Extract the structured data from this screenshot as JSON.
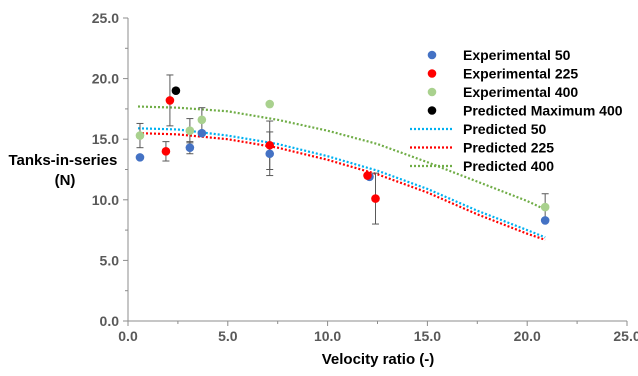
{
  "chart_data": {
    "type": "scatter",
    "xlabel": "Velocity ratio (-)",
    "ylabel": "Tanks-in-series (N)",
    "xlim": [
      0,
      25
    ],
    "ylim": [
      0,
      25
    ],
    "x_ticks": [
      "0.0",
      "5.0",
      "10.0",
      "15.0",
      "20.0",
      "25.0"
    ],
    "y_ticks": [
      "0.0",
      "5.0",
      "10.0",
      "15.0",
      "20.0",
      "25.0"
    ],
    "grid": false,
    "legend_position": "right",
    "series": [
      {
        "name": "Experimental 50",
        "kind": "points",
        "color": "#4472C4",
        "points": [
          {
            "x": 0.6,
            "y": 13.5,
            "err": 0
          },
          {
            "x": 3.1,
            "y": 14.3,
            "err": 0.5
          },
          {
            "x": 3.7,
            "y": 15.5,
            "err": 0
          },
          {
            "x": 7.1,
            "y": 13.8,
            "err": 1.8
          },
          {
            "x": 12.1,
            "y": 11.9,
            "err": 0
          },
          {
            "x": 20.9,
            "y": 8.3,
            "err": 0
          }
        ]
      },
      {
        "name": "Experimental 225",
        "kind": "points",
        "color": "#FF0000",
        "points": [
          {
            "x": 1.9,
            "y": 14.0,
            "err": 0.8
          },
          {
            "x": 2.1,
            "y": 18.2,
            "err": 2.1
          },
          {
            "x": 7.1,
            "y": 14.5,
            "err": 2.0
          },
          {
            "x": 12.0,
            "y": 12.0,
            "err": 0
          },
          {
            "x": 12.4,
            "y": 10.1,
            "err": 2.1
          }
        ]
      },
      {
        "name": "Experimental 400",
        "kind": "points",
        "color": "#A9D18E",
        "points": [
          {
            "x": 0.6,
            "y": 15.3,
            "err": 1.0
          },
          {
            "x": 3.1,
            "y": 15.7,
            "err": 1.0
          },
          {
            "x": 3.7,
            "y": 16.6,
            "err": 1.0
          },
          {
            "x": 7.1,
            "y": 17.9,
            "err": 0
          },
          {
            "x": 20.9,
            "y": 9.4,
            "err": 1.1
          }
        ]
      },
      {
        "name": "Predicted Maximum 400",
        "kind": "points",
        "color": "#000000",
        "points": [
          {
            "x": 2.4,
            "y": 19.0,
            "err": 0
          }
        ]
      },
      {
        "name": "Predicted 50",
        "kind": "line",
        "color": "#00B0F0",
        "x": [
          0.5,
          2.5,
          5,
          7.5,
          10,
          12.5,
          15,
          17.5,
          20,
          20.9
        ],
        "y": [
          15.9,
          15.8,
          15.3,
          14.6,
          13.6,
          12.4,
          10.9,
          9.1,
          7.5,
          6.9
        ]
      },
      {
        "name": "Predicted 225",
        "kind": "line",
        "color": "#FF0000",
        "x": [
          0.5,
          2.5,
          5,
          7.5,
          10,
          12.5,
          15,
          17.5,
          20,
          20.9
        ],
        "y": [
          15.5,
          15.4,
          15.0,
          14.3,
          13.3,
          12.1,
          10.6,
          8.8,
          7.2,
          6.7
        ]
      },
      {
        "name": "Predicted 400",
        "kind": "line",
        "color": "#70AD47",
        "x": [
          0.5,
          2.5,
          5,
          7.5,
          10,
          12.5,
          15,
          17.5,
          20,
          20.9
        ],
        "y": [
          17.7,
          17.6,
          17.3,
          16.6,
          15.7,
          14.6,
          13.1,
          11.5,
          9.9,
          9.2
        ]
      }
    ]
  }
}
